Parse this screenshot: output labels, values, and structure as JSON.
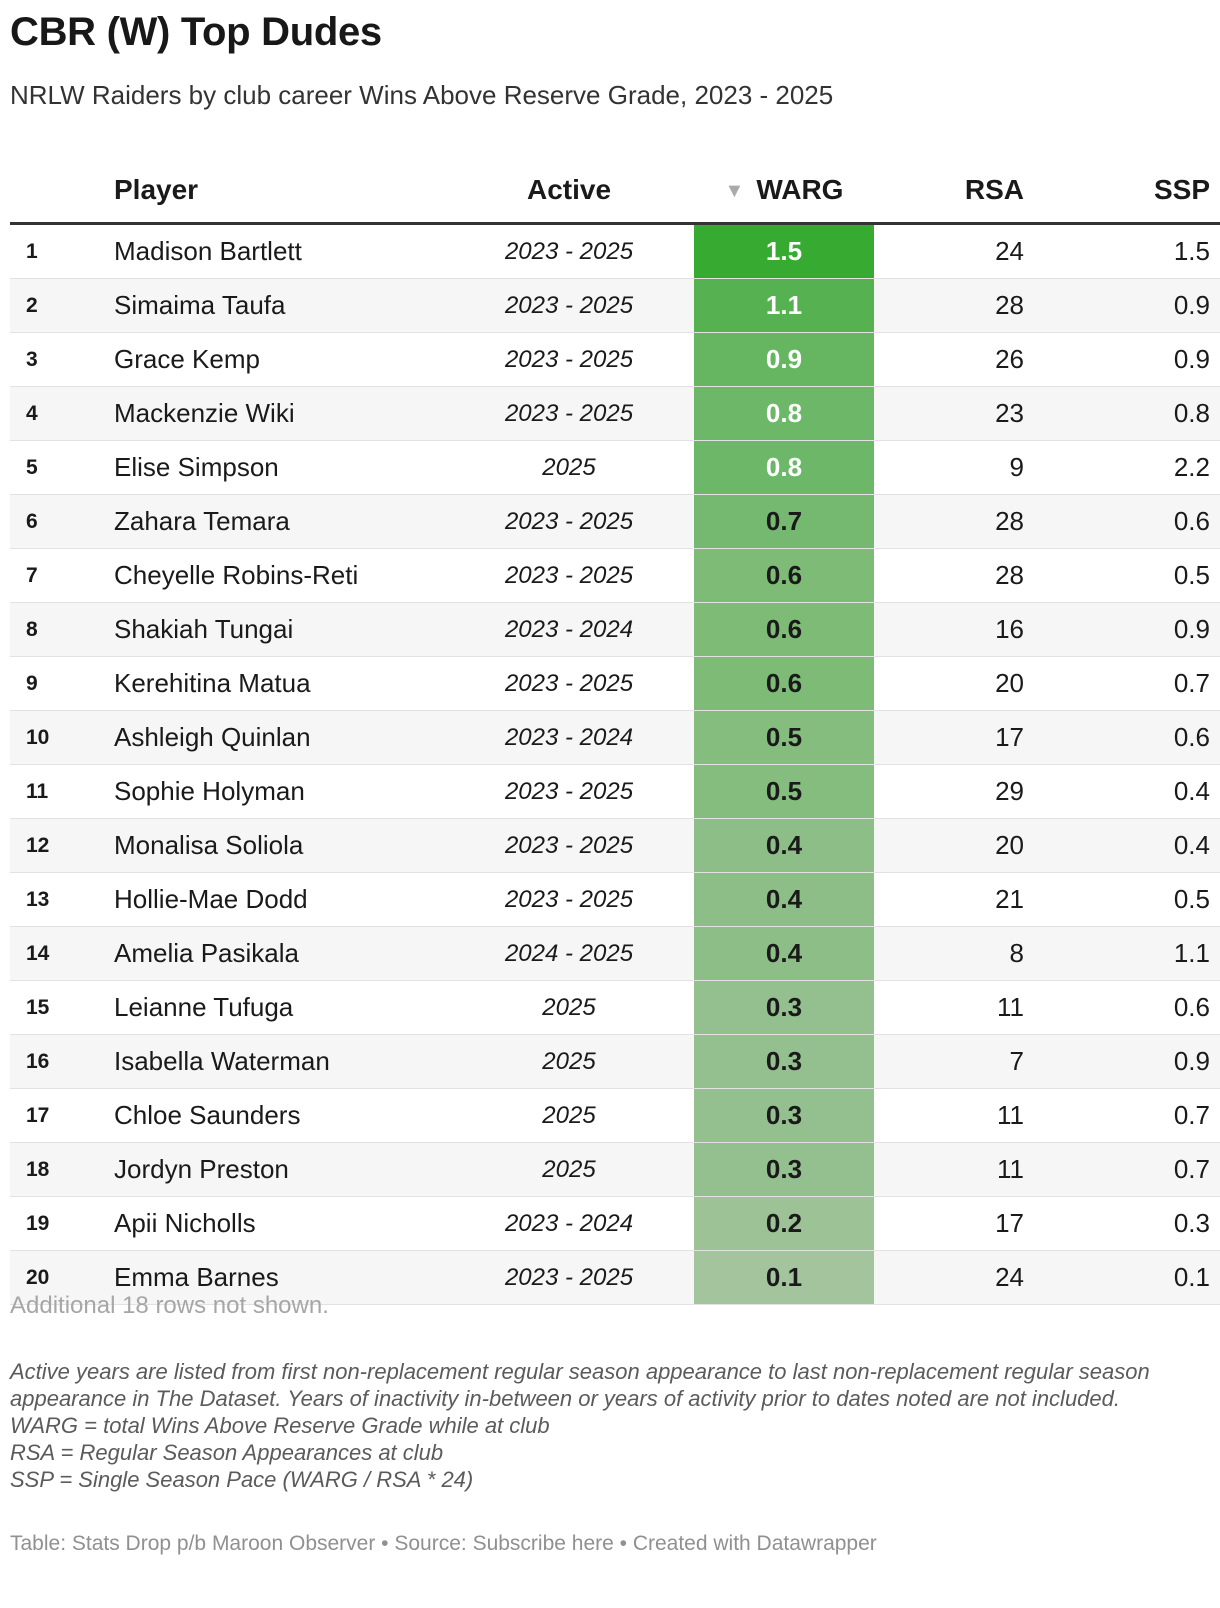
{
  "title": "CBR (W) Top Dudes",
  "subtitle": "NRLW Raiders by club career Wins Above Reserve Grade, 2023 - 2025",
  "headers": {
    "rank": "",
    "player": "Player",
    "active": "Active",
    "warg": "WARG",
    "rsa": "RSA",
    "ssp": "SSP"
  },
  "sort_indicator": "▼",
  "colors": {
    "warg_high": "#37aa32",
    "warg_low": "#a4c49e"
  },
  "chart_data": {
    "type": "table",
    "columns": [
      "",
      "Player",
      "Active",
      "WARG",
      "RSA",
      "SSP"
    ],
    "sorted_by": "WARG",
    "sort_direction": "descending",
    "rows": [
      {
        "rank": "1",
        "player": "Madison Bartlett",
        "active": "2023 - 2025",
        "warg": "1.5",
        "rsa": "24",
        "ssp": "1.5"
      },
      {
        "rank": "2",
        "player": "Simaima Taufa",
        "active": "2023 - 2025",
        "warg": "1.1",
        "rsa": "28",
        "ssp": "0.9"
      },
      {
        "rank": "3",
        "player": "Grace Kemp",
        "active": "2023 - 2025",
        "warg": "0.9",
        "rsa": "26",
        "ssp": "0.9"
      },
      {
        "rank": "4",
        "player": "Mackenzie Wiki",
        "active": "2023 - 2025",
        "warg": "0.8",
        "rsa": "23",
        "ssp": "0.8"
      },
      {
        "rank": "5",
        "player": "Elise Simpson",
        "active": "2025",
        "warg": "0.8",
        "rsa": "9",
        "ssp": "2.2"
      },
      {
        "rank": "6",
        "player": "Zahara Temara",
        "active": "2023 - 2025",
        "warg": "0.7",
        "rsa": "28",
        "ssp": "0.6"
      },
      {
        "rank": "7",
        "player": "Cheyelle Robins-Reti",
        "active": "2023 - 2025",
        "warg": "0.6",
        "rsa": "28",
        "ssp": "0.5"
      },
      {
        "rank": "8",
        "player": "Shakiah Tungai",
        "active": "2023 - 2024",
        "warg": "0.6",
        "rsa": "16",
        "ssp": "0.9"
      },
      {
        "rank": "9",
        "player": "Kerehitina Matua",
        "active": "2023 - 2025",
        "warg": "0.6",
        "rsa": "20",
        "ssp": "0.7"
      },
      {
        "rank": "10",
        "player": "Ashleigh Quinlan",
        "active": "2023 - 2024",
        "warg": "0.5",
        "rsa": "17",
        "ssp": "0.6"
      },
      {
        "rank": "11",
        "player": "Sophie Holyman",
        "active": "2023 - 2025",
        "warg": "0.5",
        "rsa": "29",
        "ssp": "0.4"
      },
      {
        "rank": "12",
        "player": "Monalisa Soliola",
        "active": "2023 - 2025",
        "warg": "0.4",
        "rsa": "20",
        "ssp": "0.4"
      },
      {
        "rank": "13",
        "player": "Hollie-Mae Dodd",
        "active": "2023 - 2025",
        "warg": "0.4",
        "rsa": "21",
        "ssp": "0.5"
      },
      {
        "rank": "14",
        "player": "Amelia Pasikala",
        "active": "2024 - 2025",
        "warg": "0.4",
        "rsa": "8",
        "ssp": "1.1"
      },
      {
        "rank": "15",
        "player": "Leianne Tufuga",
        "active": "2025",
        "warg": "0.3",
        "rsa": "11",
        "ssp": "0.6"
      },
      {
        "rank": "16",
        "player": "Isabella Waterman",
        "active": "2025",
        "warg": "0.3",
        "rsa": "7",
        "ssp": "0.9"
      },
      {
        "rank": "17",
        "player": "Chloe Saunders",
        "active": "2025",
        "warg": "0.3",
        "rsa": "11",
        "ssp": "0.7"
      },
      {
        "rank": "18",
        "player": "Jordyn Preston",
        "active": "2025",
        "warg": "0.3",
        "rsa": "11",
        "ssp": "0.7"
      },
      {
        "rank": "19",
        "player": "Apii Nicholls",
        "active": "2023 - 2024",
        "warg": "0.2",
        "rsa": "17",
        "ssp": "0.3"
      },
      {
        "rank": "20",
        "player": "Emma Barnes",
        "active": "2023 - 2025",
        "warg": "0.1",
        "rsa": "24",
        "ssp": "0.1"
      }
    ]
  },
  "more_rows": "Additional 18 rows not shown.",
  "notes": [
    "Active years are listed from first non-replacement regular season appearance to last non-replacement regular season appearance in The Dataset. Years of inactivity in-between or years of activity prior to dates noted are not included.",
    "WARG = total Wins Above Reserve Grade while at club",
    "RSA = Regular Season Appearances at club",
    "SSP = Single Season Pace (WARG / RSA * 24)"
  ],
  "footer": "Table: Stats Drop p/b Maroon Observer • Source: Subscribe here • Created with Datawrapper"
}
